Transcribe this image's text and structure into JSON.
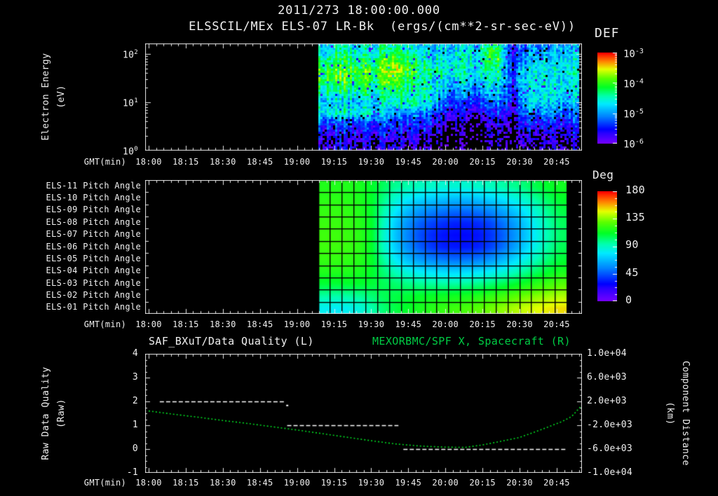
{
  "title": {
    "line1": "2011/273 18:00:00.000",
    "line2": "ELSSCIL/MEx ELS-07 LR-Bk  (ergs/(cm**2-sr-sec-eV))"
  },
  "time_axis": {
    "label": "GMT(min)",
    "tick_labels": [
      "18:00",
      "18:15",
      "18:30",
      "18:45",
      "19:00",
      "19:15",
      "19:30",
      "19:45",
      "20:00",
      "20:15",
      "20:30",
      "20:45"
    ],
    "major_step_min": 15,
    "minor_step_min": 3
  },
  "colors": {
    "background": "#000000",
    "text": "#f0f0f0",
    "title_right_green": "#00cc44",
    "curve_green": "#00dd22",
    "quality_white": "#ffffff"
  },
  "panels": {
    "spectrogram": {
      "ylabel": {
        "line1": "Electron Energy",
        "line2": "(eV)"
      },
      "ytick_labels": [
        "10^2",
        "10^1",
        "10^0"
      ],
      "colorbar": {
        "title": "DEF",
        "tick_labels": [
          "10^-3",
          "10^-4",
          "10^-5",
          "10^-6"
        ]
      }
    },
    "pitch_angles": {
      "row_labels": [
        "ELS-11 Pitch Angle",
        "ELS-10 Pitch Angle",
        "ELS-09 Pitch Angle",
        "ELS-08 Pitch Angle",
        "ELS-07 Pitch Angle",
        "ELS-06 Pitch Angle",
        "ELS-05 Pitch Angle",
        "ELS-04 Pitch Angle",
        "ELS-03 Pitch Angle",
        "ELS-02 Pitch Angle",
        "ELS-01 Pitch Angle"
      ],
      "colorbar": {
        "title": "Deg",
        "tick_labels": [
          "180",
          "135",
          "90",
          "45",
          "0"
        ]
      }
    },
    "quality_distance": {
      "title_left": "SAF_BXuT/Data Quality (L)",
      "title_right": "MEXORBMC/SPF X, Spacecraft (R)",
      "ylabel_left": {
        "line1": "Raw Data Quality",
        "line2": "(Raw)"
      },
      "ytick_labels_left": [
        "4",
        "3",
        "2",
        "1",
        "0",
        "-1"
      ],
      "ylabel_right": {
        "line1": "Component Distance",
        "line2": "(km)"
      },
      "ytick_labels_right": [
        "1.0e+04",
        "6.0e+03",
        "2.0e+03",
        "-2.0e+03",
        "-6.0e+03",
        "-1.0e+04"
      ]
    }
  },
  "chart_data": [
    {
      "type": "heatmap",
      "name": "electron-energy-spectrogram",
      "units": "ergs/(cm**2-sr-sec-eV)",
      "value_scale": "log10 DEF, colorbar 10^-3 (red) to 10^-6 (violet)",
      "x_data_range_min": [
        68.5,
        174
      ],
      "x_grid_minutes_from_1800": [
        70,
        77,
        84,
        91,
        98,
        105,
        112,
        119,
        126,
        133,
        140,
        147,
        154,
        161,
        168,
        176
      ],
      "energy_rows_top_to_bottom_eV": [
        127,
        76,
        46,
        28,
        17,
        10,
        6,
        3.6,
        2.1,
        1.3
      ],
      "y_axis_decades": [
        "10^2",
        "10^1",
        "10^0"
      ],
      "log10_def_values": [
        [
          -4.6,
          -4.4,
          -4.6,
          -4.5,
          -4.3,
          -4.5,
          -4.7,
          -4.8,
          -4.6,
          -4.6,
          -3.9,
          -5.8,
          -4.9,
          -5.0,
          -4.8,
          -4.6
        ],
        [
          -4.2,
          -4.1,
          -4.2,
          -4.2,
          -3.8,
          -4.2,
          -4.5,
          -4.6,
          -4.4,
          -4.5,
          -3.8,
          -5.6,
          -4.7,
          -4.8,
          -4.6,
          -4.4
        ],
        [
          -3.9,
          -3.85,
          -3.9,
          -3.95,
          -3.5,
          -3.9,
          -4.2,
          -4.4,
          -4.5,
          -4.6,
          -4.1,
          -5.5,
          -4.5,
          -4.6,
          -4.5,
          -4.2
        ],
        [
          -3.9,
          -3.9,
          -3.95,
          -4.0,
          -3.7,
          -4.1,
          -4.4,
          -4.6,
          -4.7,
          -4.8,
          -4.4,
          -5.4,
          -4.4,
          -4.5,
          -4.6,
          -4.3
        ],
        [
          -4.2,
          -4.25,
          -4.3,
          -4.3,
          -4.2,
          -4.4,
          -4.3,
          -4.9,
          -5.0,
          -5.1,
          -4.7,
          -5.6,
          -4.4,
          -4.5,
          -4.7,
          -4.4
        ],
        [
          -4.7,
          -4.8,
          -4.8,
          -4.7,
          -4.5,
          -4.3,
          -4.3,
          -5.2,
          -5.4,
          -5.5,
          -5.0,
          -5.7,
          -4.6,
          -4.7,
          -4.9,
          -4.6
        ],
        [
          -4.4,
          -4.4,
          -4.5,
          -4.6,
          -5.0,
          -5.0,
          -5.1,
          -5.6,
          -5.8,
          -5.9,
          -5.5,
          -5.9,
          -4.9,
          -5.0,
          -5.2,
          -4.9
        ],
        [
          -5.3,
          -5.4,
          -5.4,
          -5.4,
          -5.4,
          -5.5,
          -5.5,
          -5.9,
          -6.1,
          -6.2,
          -5.8,
          -6.1,
          -5.4,
          -5.5,
          -5.6,
          -5.3
        ],
        [
          -5.6,
          -5.7,
          -5.7,
          -5.7,
          -5.7,
          -5.8,
          -5.8,
          -6.2,
          -6.3,
          -6.3,
          -6.0,
          -6.2,
          -5.7,
          -5.8,
          -5.8,
          -5.6
        ],
        [
          -5.8,
          -5.9,
          -5.9,
          -5.9,
          -5.9,
          -6.0,
          -6.0,
          -6.3,
          -6.4,
          -6.4,
          -6.1,
          -6.3,
          -5.9,
          -6.0,
          -6.0,
          -5.8
        ]
      ]
    },
    {
      "type": "heatmap",
      "name": "pitch-angle-panels",
      "units": "degrees, colorbar 0 (violet) to 180 (red)",
      "rows_top_to_bottom": [
        "ELS-11",
        "ELS-10",
        "ELS-09",
        "ELS-08",
        "ELS-07",
        "ELS-06",
        "ELS-05",
        "ELS-04",
        "ELS-03",
        "ELS-02",
        "ELS-01"
      ],
      "x_data_range_min": [
        68.5,
        169
      ],
      "columns": 21,
      "pitch_angle_deg_values": [
        [
          118,
          118,
          118,
          116,
          112,
          105,
          98,
          95,
          92,
          90,
          88,
          88,
          88,
          90,
          92,
          95,
          98,
          102,
          108,
          112,
          115
        ],
        [
          120,
          120,
          119,
          117,
          112,
          100,
          88,
          80,
          75,
          72,
          70,
          68,
          68,
          70,
          74,
          78,
          84,
          90,
          98,
          106,
          112
        ],
        [
          122,
          122,
          121,
          118,
          112,
          95,
          80,
          68,
          60,
          55,
          52,
          50,
          50,
          52,
          56,
          62,
          70,
          80,
          90,
          100,
          108
        ],
        [
          123,
          123,
          122,
          119,
          112,
          92,
          72,
          58,
          48,
          42,
          38,
          35,
          35,
          37,
          42,
          50,
          60,
          72,
          85,
          96,
          105
        ],
        [
          124,
          124,
          123,
          120,
          112,
          90,
          70,
          55,
          44,
          37,
          32,
          30,
          30,
          32,
          38,
          46,
          57,
          70,
          83,
          95,
          104
        ],
        [
          124,
          124,
          123,
          120,
          112,
          91,
          72,
          57,
          47,
          40,
          35,
          33,
          33,
          35,
          41,
          49,
          60,
          73,
          86,
          97,
          106
        ],
        [
          122,
          122,
          121,
          119,
          113,
          97,
          80,
          68,
          60,
          55,
          52,
          50,
          51,
          53,
          58,
          65,
          74,
          84,
          94,
          103,
          110
        ],
        [
          118,
          118,
          118,
          116,
          112,
          102,
          92,
          85,
          80,
          77,
          75,
          74,
          75,
          77,
          80,
          85,
          91,
          98,
          105,
          111,
          116
        ],
        [
          110,
          110,
          111,
          111,
          110,
          106,
          103,
          100,
          98,
          97,
          96,
          96,
          97,
          99,
          102,
          106,
          110,
          115,
          120,
          124,
          128
        ],
        [
          96,
          95,
          96,
          98,
          102,
          106,
          108,
          110,
          112,
          113,
          114,
          115,
          116,
          118,
          121,
          124,
          128,
          132,
          135,
          138,
          140
        ],
        [
          82,
          80,
          82,
          86,
          94,
          102,
          108,
          112,
          116,
          119,
          122,
          124,
          126,
          129,
          132,
          136,
          140,
          144,
          147,
          150,
          152
        ]
      ]
    },
    {
      "type": "line",
      "name": "quality-and-spacecraft-x",
      "x_range_min": [
        0,
        177
      ],
      "left_axis_range": [
        -1,
        4
      ],
      "right_axis_range": [
        -10000,
        10000
      ],
      "series": [
        {
          "name": "SAF_BXuT/Data Quality (L)",
          "axis": "left",
          "color": "#ffffff",
          "style": "dashed",
          "segments": [
            {
              "quality": 2,
              "t_min": [
                4.5,
                55
              ]
            },
            {
              "quality": 1,
              "t_min": [
                56,
                101
              ]
            },
            {
              "quality": 0,
              "t_min": [
                103,
                169
              ]
            }
          ],
          "isolated_point": {
            "t_min": 55.9,
            "quality": 1.83
          }
        },
        {
          "name": "MEXORBMC/SPF X, Spacecraft (R)",
          "axis": "right",
          "color": "#00dd22",
          "style": "dotted",
          "points_t_min_km": [
            [
              0,
              400
            ],
            [
              10,
              -150
            ],
            [
              20,
              -650
            ],
            [
              30,
              -1200
            ],
            [
              40,
              -1700
            ],
            [
              50,
              -2250
            ],
            [
              60,
              -2800
            ],
            [
              70,
              -3400
            ],
            [
              80,
              -4000
            ],
            [
              90,
              -4600
            ],
            [
              100,
              -5150
            ],
            [
              110,
              -5500
            ],
            [
              120,
              -5680
            ],
            [
              128,
              -5720
            ],
            [
              135,
              -5300
            ],
            [
              140,
              -4900
            ],
            [
              150,
              -4050
            ],
            [
              159,
              -2700
            ],
            [
              167,
              -1400
            ],
            [
              171,
              -550
            ],
            [
              175,
              1260
            ]
          ]
        }
      ]
    }
  ]
}
